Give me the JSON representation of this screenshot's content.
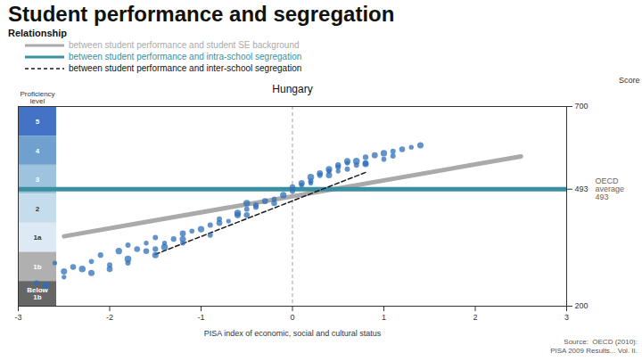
{
  "chart_data": {
    "type": "scatter",
    "title": "Student performance and segregation",
    "subtitle": "Relationship",
    "chart_title": "Hungary",
    "xlabel": "PISA index of economic, social and cultural status",
    "ylabel": "Score",
    "xlim": [
      -3,
      3
    ],
    "xticks": [
      -3,
      -2,
      -1,
      0,
      1,
      2,
      3
    ],
    "ylim": [
      200,
      700
    ],
    "yticks": [
      200,
      493,
      700
    ],
    "color": "#2f6fba",
    "x": [
      -2.8,
      -2.7,
      -2.6,
      -2.5,
      -2.4,
      -2.3,
      -2.2,
      -2.1,
      -2.0,
      -1.9,
      -1.8,
      -1.7,
      -1.6,
      -1.5,
      -1.5,
      -1.4,
      -1.3,
      -1.2,
      -1.1,
      -1.0,
      -0.9,
      -0.8,
      -0.7,
      -0.6,
      -0.5,
      -0.5,
      -0.4,
      -0.3,
      -0.2,
      -0.1,
      0.0,
      0.0,
      0.1,
      0.1,
      0.2,
      0.2,
      0.3,
      0.3,
      0.4,
      0.4,
      0.5,
      0.5,
      0.6,
      0.6,
      0.7,
      0.7,
      0.8,
      0.9,
      1.0,
      1.0,
      1.1,
      1.2,
      1.3,
      1.4,
      -1.8,
      -1.6,
      -1.4,
      -1.2,
      -0.8,
      -0.6,
      -0.4,
      -0.2,
      0.2,
      0.4,
      0.6,
      0.8,
      -2.5,
      -2.2,
      -2.0,
      -1.8,
      -1.5,
      -1.2,
      -0.9,
      -0.5,
      0.5,
      0.8,
      1.1
    ],
    "values": [
      258,
      252,
      308,
      287,
      298,
      293,
      312,
      328,
      293,
      338,
      308,
      343,
      358,
      328,
      372,
      348,
      368,
      382,
      388,
      393,
      403,
      408,
      413,
      428,
      443,
      458,
      453,
      463,
      468,
      478,
      488,
      498,
      503,
      508,
      513,
      523,
      528,
      533,
      538,
      543,
      548,
      553,
      558,
      563,
      553,
      563,
      573,
      578,
      568,
      583,
      588,
      593,
      598,
      603,
      353,
      338,
      358,
      368,
      418,
      433,
      448,
      458,
      508,
      528,
      543,
      558,
      273,
      283,
      303,
      318,
      343,
      358,
      378,
      428,
      538,
      556,
      576
    ],
    "sizes": [
      10,
      18,
      8,
      14,
      12,
      16,
      9,
      11,
      13,
      15,
      10,
      12,
      8,
      14,
      10,
      16,
      11,
      13,
      9,
      15,
      10,
      12,
      8,
      14,
      10,
      16,
      11,
      13,
      9,
      15,
      10,
      12,
      8,
      14,
      10,
      16,
      11,
      13,
      9,
      15,
      10,
      12,
      8,
      14,
      10,
      16,
      11,
      13,
      9,
      15,
      10,
      12,
      8,
      14,
      10,
      12,
      8,
      14,
      10,
      16,
      10,
      12,
      8,
      14,
      10,
      12,
      8,
      14,
      10,
      16,
      11,
      9,
      10,
      12,
      8,
      14,
      10
    ],
    "series": [
      {
        "name": "between student performance and student SE background",
        "type": "line",
        "color": "#aaaaaa",
        "x": [
          -2.5,
          2.5
        ],
        "values": [
          375,
          575
        ]
      },
      {
        "name": "between student performance and intra-school segregation",
        "type": "line",
        "color": "#3a8fa0",
        "x": [
          -3.0,
          3.0
        ],
        "values": [
          493,
          493
        ]
      },
      {
        "name": "between student performance and inter-school segregation",
        "type": "line",
        "color": "#1a1a1a",
        "line_style": "dashed",
        "x": [
          -1.5,
          0.8
        ],
        "values": [
          330,
          535
        ]
      }
    ],
    "legend": "top",
    "bands_title": "Proficiency\nlevel",
    "bands": [
      {
        "label": "5",
        "ybot": 626,
        "ytop": 700,
        "color": "#4472c4"
      },
      {
        "label": "4",
        "ybot": 553,
        "ytop": 626,
        "color": "#70a0cd"
      },
      {
        "label": "3",
        "ybot": 481,
        "ytop": 553,
        "color": "#9dc3df"
      },
      {
        "label": "2",
        "ybot": 408,
        "ytop": 481,
        "color": "#c5dced"
      },
      {
        "label": "1a",
        "ybot": 335,
        "ytop": 408,
        "color": "#ddeaf5"
      },
      {
        "label": "1b",
        "ybot": 262,
        "ytop": 335,
        "color": "#b0b0b0"
      },
      {
        "label": "Below\n1b",
        "ybot": 200,
        "ytop": 262,
        "color": "#666666"
      }
    ],
    "ref_lines": [
      {
        "y": 493,
        "label": "OECD\naverage\n493"
      },
      {
        "x": 0
      }
    ],
    "source": "Source:  OECD (2010):\nPISA 2009 Results... Vol. II."
  }
}
